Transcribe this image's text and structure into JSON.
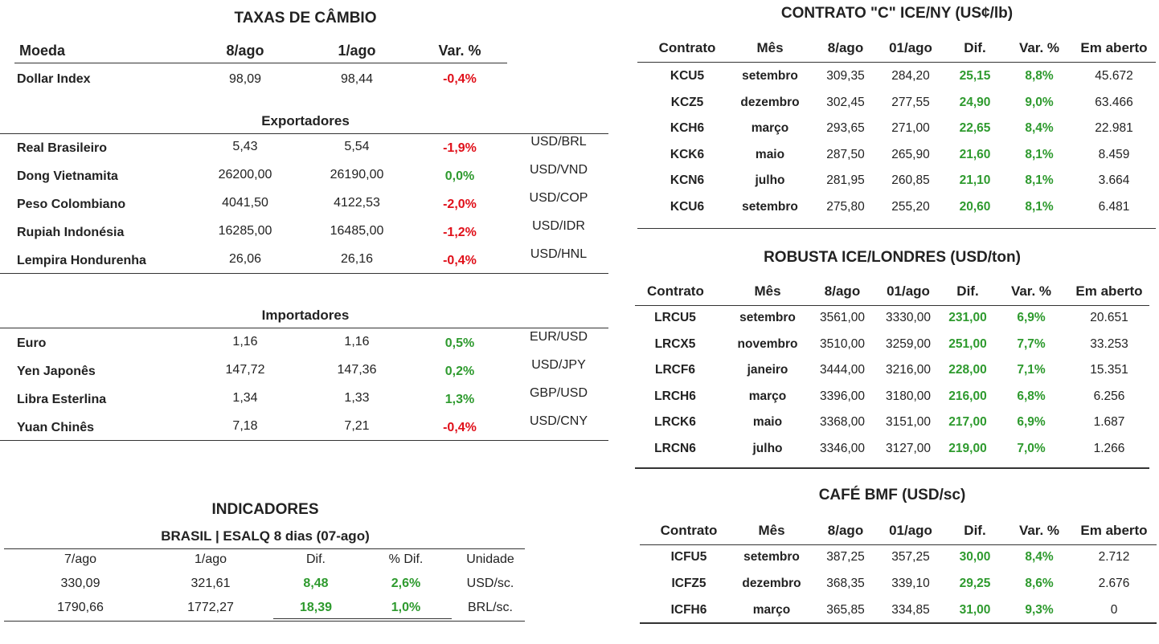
{
  "fx": {
    "title": "TAXAS DE CÂMBIO",
    "headers": [
      "Moeda",
      "8/ago",
      "1/ago",
      "Var. %"
    ],
    "dollar_index": {
      "name": "Dollar Index",
      "v1": "98,09",
      "v2": "98,44",
      "var": "-0,4%"
    },
    "exporters_title": "Exportadores",
    "exporters": [
      {
        "name": "Real Brasileiro",
        "v1": "5,43",
        "v2": "5,54",
        "var": "-1,9%",
        "pair": "USD/BRL",
        "neg": true
      },
      {
        "name": "Dong Vietnamita",
        "v1": "26200,00",
        "v2": "26190,00",
        "var": "0,0%",
        "pair": "USD/VND",
        "neg": false
      },
      {
        "name": "Peso Colombiano",
        "v1": "4041,50",
        "v2": "4122,53",
        "var": "-2,0%",
        "pair": "USD/COP",
        "neg": true
      },
      {
        "name": "Rupiah Indonésia",
        "v1": "16285,00",
        "v2": "16485,00",
        "var": "-1,2%",
        "pair": "USD/IDR",
        "neg": true
      },
      {
        "name": "Lempira Hondurenha",
        "v1": "26,06",
        "v2": "26,16",
        "var": "-0,4%",
        "pair": "USD/HNL",
        "neg": true
      }
    ],
    "importers_title": "Importadores",
    "importers": [
      {
        "name": "Euro",
        "v1": "1,16",
        "v2": "1,16",
        "var": "0,5%",
        "pair": "EUR/USD",
        "neg": false
      },
      {
        "name": "Yen Japonês",
        "v1": "147,72",
        "v2": "147,36",
        "var": "0,2%",
        "pair": "USD/JPY",
        "neg": false
      },
      {
        "name": "Libra Esterlina",
        "v1": "1,34",
        "v2": "1,33",
        "var": "1,3%",
        "pair": "GBP/USD",
        "neg": false
      },
      {
        "name": "Yuan Chinês",
        "v1": "7,18",
        "v2": "7,21",
        "var": "-0,4%",
        "pair": "USD/CNY",
        "neg": true
      }
    ]
  },
  "indicators": {
    "title": "INDICADORES",
    "subtitle": "BRASIL | ESALQ 8 dias (07-ago)",
    "headers": [
      "7/ago",
      "1/ago",
      "Dif.",
      "% Dif.",
      "Unidade"
    ],
    "rows": [
      [
        "330,09",
        "321,61",
        "8,48",
        "2,6%",
        "USD/sc."
      ],
      [
        "1790,66",
        "1772,27",
        "18,39",
        "1,0%",
        "BRL/sc."
      ]
    ]
  },
  "ny": {
    "title": "CONTRATO \"C\" ICE/NY (US¢/lb)",
    "headers": [
      "Contrato",
      "Mês",
      "8/ago",
      "01/ago",
      "Dif.",
      "Var. %",
      "Em aberto"
    ],
    "rows": [
      [
        "KCU5",
        "setembro",
        "309,35",
        "284,20",
        "25,15",
        "8,8%",
        "45.672"
      ],
      [
        "KCZ5",
        "dezembro",
        "302,45",
        "277,55",
        "24,90",
        "9,0%",
        "63.466"
      ],
      [
        "KCH6",
        "março",
        "293,65",
        "271,00",
        "22,65",
        "8,4%",
        "22.981"
      ],
      [
        "KCK6",
        "maio",
        "287,50",
        "265,90",
        "21,60",
        "8,1%",
        "8.459"
      ],
      [
        "KCN6",
        "julho",
        "281,95",
        "260,85",
        "21,10",
        "8,1%",
        "3.664"
      ],
      [
        "KCU6",
        "setembro",
        "275,80",
        "255,20",
        "20,60",
        "8,1%",
        "6.481"
      ]
    ]
  },
  "london": {
    "title": "ROBUSTA ICE/LONDRES (USD/ton)",
    "headers": [
      "Contrato",
      "Mês",
      "8/ago",
      "01/ago",
      "Dif.",
      "Var. %",
      "Em aberto"
    ],
    "rows": [
      [
        "LRCU5",
        "setembro",
        "3561,00",
        "3330,00",
        "231,00",
        "6,9%",
        "20.651"
      ],
      [
        "LRCX5",
        "novembro",
        "3510,00",
        "3259,00",
        "251,00",
        "7,7%",
        "33.253"
      ],
      [
        "LRCF6",
        "janeiro",
        "3444,00",
        "3216,00",
        "228,00",
        "7,1%",
        "15.351"
      ],
      [
        "LRCH6",
        "março",
        "3396,00",
        "3180,00",
        "216,00",
        "6,8%",
        "6.256"
      ],
      [
        "LRCK6",
        "maio",
        "3368,00",
        "3151,00",
        "217,00",
        "6,9%",
        "1.687"
      ],
      [
        "LRCN6",
        "julho",
        "3346,00",
        "3127,00",
        "219,00",
        "7,0%",
        "1.266"
      ]
    ]
  },
  "bmf": {
    "title": "CAFÉ BMF (USD/sc)",
    "headers": [
      "Contrato",
      "Mês",
      "8/ago",
      "01/ago",
      "Dif.",
      "Var. %",
      "Em aberto"
    ],
    "rows": [
      [
        "ICFU5",
        "setembro",
        "387,25",
        "357,25",
        "30,00",
        "8,4%",
        "2.712"
      ],
      [
        "ICFZ5",
        "dezembro",
        "368,35",
        "339,10",
        "29,25",
        "8,6%",
        "2.676"
      ],
      [
        "ICFH6",
        "março",
        "365,85",
        "334,85",
        "31,00",
        "9,3%",
        "0"
      ]
    ]
  },
  "colors": {
    "negative": "#e0101a",
    "positive": "#2e9a2e"
  }
}
